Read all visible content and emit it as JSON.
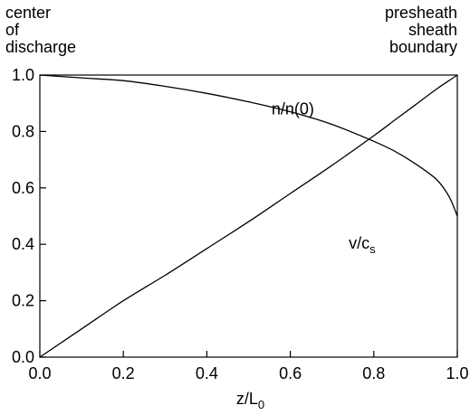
{
  "annotations": {
    "left_lines": [
      "center",
      "of",
      "discharge"
    ],
    "right_lines": [
      "presheath",
      "sheath",
      "boundary"
    ],
    "density_curve_label": "n/n(0)",
    "velocity_curve_label_main": "v/c",
    "velocity_curve_label_sub": "s"
  },
  "chart_data": {
    "type": "line",
    "title": "",
    "xlabel_main": "z/L",
    "xlabel_sub": "0",
    "ylabel": "",
    "xlim": [
      0.0,
      1.0
    ],
    "ylim": [
      0.0,
      1.0
    ],
    "x_ticks": [
      "0.0",
      "0.2",
      "0.4",
      "0.6",
      "0.8",
      "1.0"
    ],
    "y_ticks": [
      "0.0",
      "0.2",
      "0.4",
      "0.6",
      "0.8",
      "1.0"
    ],
    "grid": false,
    "series": [
      {
        "name": "n/n(0)",
        "x": [
          0.0,
          0.1,
          0.2,
          0.3,
          0.4,
          0.5,
          0.6,
          0.7,
          0.8,
          0.85,
          0.9,
          0.95,
          0.98,
          1.0
        ],
        "y": [
          1.0,
          0.99,
          0.98,
          0.96,
          0.935,
          0.905,
          0.87,
          0.825,
          0.765,
          0.73,
          0.685,
          0.63,
          0.57,
          0.5
        ]
      },
      {
        "name": "v/c_s",
        "x": [
          0.0,
          0.1,
          0.2,
          0.3,
          0.4,
          0.5,
          0.6,
          0.7,
          0.8,
          0.85,
          0.9,
          0.95,
          0.98,
          1.0
        ],
        "y": [
          0.0,
          0.1,
          0.2,
          0.29,
          0.385,
          0.48,
          0.58,
          0.68,
          0.785,
          0.84,
          0.895,
          0.95,
          0.98,
          1.0
        ]
      }
    ]
  }
}
